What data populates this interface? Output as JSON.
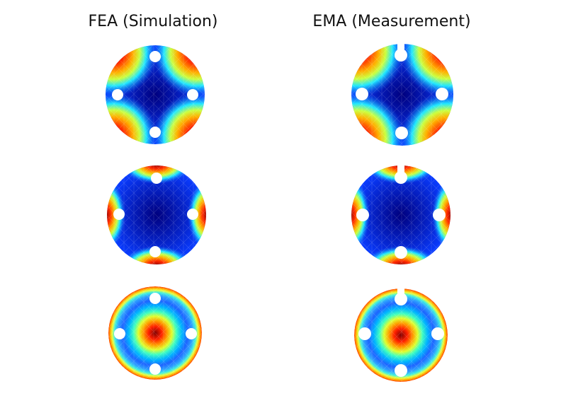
{
  "titles": {
    "left": "FEA (Simulation)",
    "right": "EMA (Measurement)"
  },
  "columns": [
    {
      "key": "fea",
      "bolt_holes": 4,
      "slot_notch": false
    },
    {
      "key": "ema",
      "bolt_holes": 4,
      "slot_notch": true
    }
  ],
  "mode_shapes": [
    {
      "row": 1,
      "pattern": "four-lobe-diagonal"
    },
    {
      "row": 2,
      "pattern": "four-lobe-axial"
    },
    {
      "row": 3,
      "pattern": "center-peak-with-ring"
    }
  ],
  "colormap": [
    "#00007f",
    "#0040ff",
    "#00c8ff",
    "#7fff7f",
    "#ffdd00",
    "#ff3000",
    "#7f0000"
  ]
}
